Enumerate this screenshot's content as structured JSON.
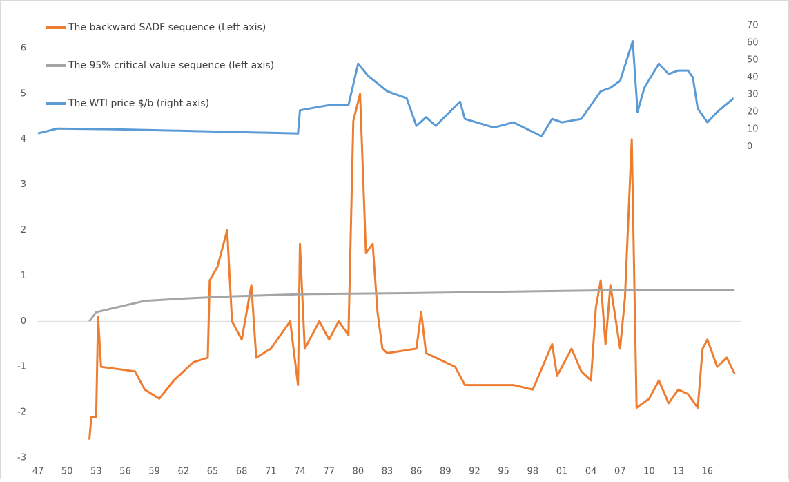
{
  "chart_data": {
    "type": "line",
    "xlim": [
      1947,
      2019.5
    ],
    "xticks": [
      {
        "value": 1947,
        "label": "47"
      },
      {
        "value": 1950,
        "label": "50"
      },
      {
        "value": 1953,
        "label": "53"
      },
      {
        "value": 1956,
        "label": "56"
      },
      {
        "value": 1959,
        "label": "59"
      },
      {
        "value": 1962,
        "label": "62"
      },
      {
        "value": 1965,
        "label": "65"
      },
      {
        "value": 1968,
        "label": "68"
      },
      {
        "value": 1971,
        "label": "71"
      },
      {
        "value": 1974,
        "label": "74"
      },
      {
        "value": 1977,
        "label": "77"
      },
      {
        "value": 1980,
        "label": "80"
      },
      {
        "value": 1983,
        "label": "83"
      },
      {
        "value": 1986,
        "label": "86"
      },
      {
        "value": 1989,
        "label": "89"
      },
      {
        "value": 1992,
        "label": "92"
      },
      {
        "value": 1995,
        "label": "95"
      },
      {
        "value": 1998,
        "label": "98"
      },
      {
        "value": 2001,
        "label": "01"
      },
      {
        "value": 2004,
        "label": "04"
      },
      {
        "value": 2007,
        "label": "07"
      },
      {
        "value": 2010,
        "label": "10"
      },
      {
        "value": 2013,
        "label": "13"
      },
      {
        "value": 2016,
        "label": "16"
      }
    ],
    "ylim": [
      -3,
      6.5
    ],
    "yticks": [
      -3,
      -2,
      -1,
      0,
      1,
      2,
      3,
      4,
      5,
      6
    ],
    "y2lim": [
      -180,
      70
    ],
    "y2ticks": [
      0,
      10,
      20,
      30,
      40,
      50,
      60,
      70
    ],
    "legend": "upper left",
    "series": [
      {
        "name": "The backward SADF sequence (Left axis)",
        "color": "#ed7d31",
        "x": [
          1952.3,
          1952.5,
          1953,
          1953.2,
          1953.5,
          1957,
          1958,
          1959.5,
          1961,
          1963,
          1964.5,
          1964.7,
          1965.5,
          1966.5,
          1967,
          1968,
          1969,
          1969.5,
          1971,
          1972,
          1973,
          1973.8,
          1974,
          1974.5,
          1976,
          1977,
          1978,
          1979,
          1979.5,
          1980.2,
          1980.8,
          1981.5,
          1982,
          1982.5,
          1983,
          1986,
          1986.5,
          1987,
          1988,
          1990,
          1991,
          1994,
          1996,
          1998,
          2000,
          2000.5,
          2002,
          2003,
          2004,
          2004.5,
          2005,
          2005.5,
          2006,
          2007,
          2007.5,
          2008.2,
          2008.7,
          2010,
          2011,
          2012,
          2013,
          2014,
          2015,
          2015.5,
          2016,
          2017,
          2018,
          2018.8
        ],
        "values": [
          -2.6,
          -2.1,
          -2.1,
          0.1,
          -1.0,
          -1.1,
          -1.5,
          -1.7,
          -1.3,
          -0.9,
          -0.8,
          0.9,
          1.2,
          2.0,
          0.0,
          -0.4,
          0.8,
          -0.8,
          -0.6,
          -0.3,
          0.0,
          -1.4,
          1.7,
          -0.6,
          0.0,
          -0.4,
          0.0,
          -0.3,
          4.4,
          5.0,
          1.5,
          1.7,
          0.2,
          -0.6,
          -0.7,
          -0.6,
          0.2,
          -0.7,
          -0.8,
          -1.0,
          -1.4,
          -1.4,
          -1.4,
          -1.5,
          -0.5,
          -1.2,
          -0.6,
          -1.1,
          -1.3,
          0.3,
          0.9,
          -0.5,
          0.8,
          -0.6,
          0.5,
          4.0,
          -1.9,
          -1.7,
          -1.3,
          -1.8,
          -1.5,
          -1.6,
          -1.9,
          -0.6,
          -0.4,
          -1.0,
          -0.8,
          -1.15
        ]
      },
      {
        "name": "The 95% critical value sequence (left axis)",
        "color": "#a5a5a5",
        "x": [
          1952.3,
          1953,
          1955,
          1958,
          1962,
          1967,
          1975,
          1985,
          1995,
          2005,
          2018.8
        ],
        "values": [
          0.0,
          0.2,
          0.3,
          0.45,
          0.5,
          0.55,
          0.6,
          0.62,
          0.65,
          0.68,
          0.68
        ]
      },
      {
        "name": "The WTI price $/b (right axis)",
        "color": "#5b9bd5",
        "axis": "y2",
        "x": [
          1947,
          1949,
          1955,
          1973.8,
          1974,
          1977,
          1979,
          1980,
          1981,
          1983,
          1985,
          1986,
          1987,
          1988,
          1990.5,
          1991,
          1994,
          1996,
          1998.9,
          2000,
          2001,
          2003,
          2005,
          2006,
          2007,
          2008.3,
          2008.8,
          2009.5,
          2011,
          2012,
          2013,
          2014,
          2014.5,
          2015,
          2016,
          2017,
          2018.7
        ],
        "values": [
          7.6,
          10.4,
          10,
          7.6,
          21,
          24,
          24,
          48,
          41,
          32,
          28,
          12,
          17,
          12,
          26,
          16,
          11,
          14,
          6,
          16,
          14,
          16,
          32,
          34,
          38,
          61,
          20,
          34,
          48,
          42,
          44,
          44,
          40,
          22,
          14,
          20,
          28
        ]
      }
    ]
  }
}
